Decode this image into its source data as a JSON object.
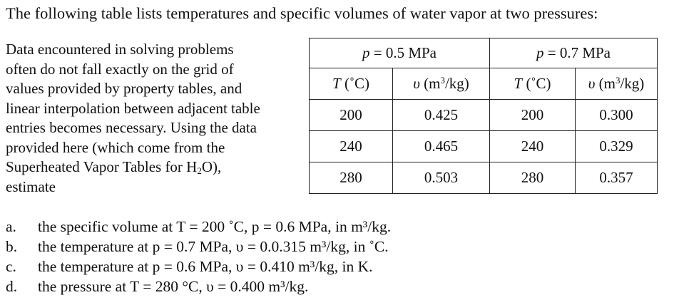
{
  "intro": "The following table lists temperatures and specific volumes of water vapor at two pressures:",
  "paragraph_lines": [
    "Data encountered in solving problems",
    "often do not fall exactly on the grid of",
    "values provided by property tables, and",
    "linear interpolation between adjacent table",
    "entries becomes necessary.  Using the data",
    "provided here (which come from the",
    "Superheated Vapor Tables for H",
    "estimate"
  ],
  "paragraph_subscript": "2",
  "paragraph_line7_tail": "O),",
  "table": {
    "groups": [
      {
        "var": "p",
        "eq": " = 0.5 MPa"
      },
      {
        "var": "p",
        "eq": " = 0.7 MPa"
      }
    ],
    "col_headers": [
      {
        "var": "T",
        "unit": " (˚C)"
      },
      {
        "var": "υ",
        "unit": " (m",
        "sup": "3",
        "tail": "/kg)"
      },
      {
        "var": "T",
        "unit": " (˚C)"
      },
      {
        "var": "υ",
        "unit": " (m",
        "sup": "3",
        "tail": "/kg)"
      }
    ],
    "rows": [
      [
        "200",
        "0.425",
        "200",
        "0.300"
      ],
      [
        "240",
        "0.465",
        "240",
        "0.329"
      ],
      [
        "280",
        "0.503",
        "280",
        "0.357"
      ]
    ]
  },
  "questions": [
    {
      "label": "a.",
      "text": "the specific volume at T = 200 ˚C, p = 0.6 MPa, in m³/kg."
    },
    {
      "label": "b.",
      "text": "the temperature at p = 0.7 MPa, υ = 0.0.315 m³/kg, in ˚C."
    },
    {
      "label": "c.",
      "text": "the temperature at p = 0.6 MPa, υ = 0.410 m³/kg, in K."
    },
    {
      "label": "d.",
      "text": "the pressure at T = 280 °C, υ = 0.400 m³/kg."
    }
  ]
}
